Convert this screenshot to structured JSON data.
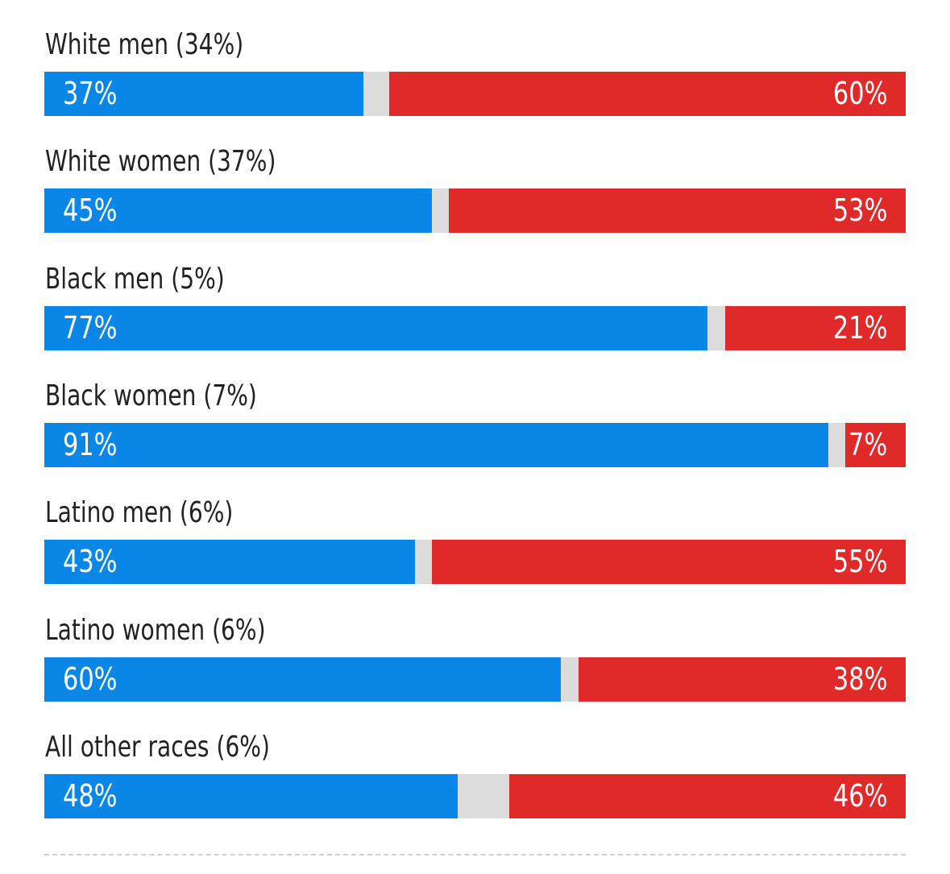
{
  "chart_data": {
    "type": "bar",
    "stacked": true,
    "orientation": "horizontal",
    "categories": [
      "White men (34%)",
      "White women (37%)",
      "Black men (5%)",
      "Black women (7%)",
      "Latino men (6%)",
      "Latino women (6%)",
      "All other races (6%)"
    ],
    "series": [
      {
        "color": "#0a87e6",
        "values": [
          37,
          45,
          77,
          91,
          43,
          60,
          48
        ],
        "labels": [
          "37%",
          "45%",
          "77%",
          "91%",
          "43%",
          "60%",
          "48%"
        ]
      },
      {
        "color": "#dcdcdc",
        "values": [
          3,
          2,
          2,
          2,
          2,
          2,
          6
        ]
      },
      {
        "color": "#e02a2a",
        "values": [
          60,
          53,
          21,
          7,
          55,
          38,
          46
        ],
        "labels": [
          "60%",
          "53%",
          "21%",
          "7%",
          "55%",
          "38%",
          "46%"
        ]
      }
    ],
    "xlim": [
      0,
      100
    ],
    "grid": false,
    "legend": "none"
  }
}
